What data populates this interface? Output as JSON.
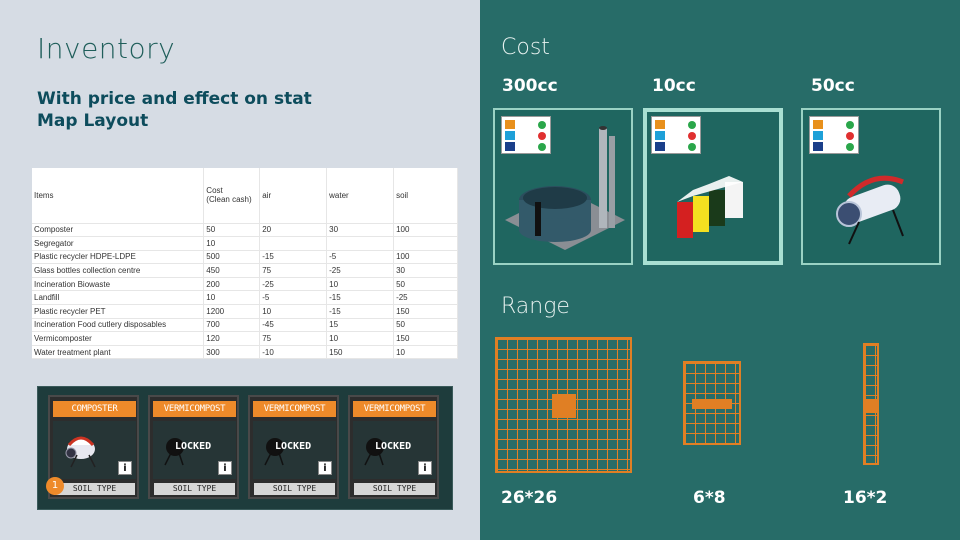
{
  "inventory": {
    "title": "Inventory",
    "subtitle_line1": "With price and effect on stat",
    "subtitle_line2": "Map Layout"
  },
  "table": {
    "headers": [
      "Items",
      "Cost\n(Clean cash)",
      "air",
      "water",
      "soil"
    ],
    "rows": [
      [
        "Composter",
        "50",
        "20",
        "30",
        "100"
      ],
      [
        "Segregator",
        "10",
        "",
        "",
        ""
      ],
      [
        "Plastic recycler HDPE-LDPE",
        "500",
        "-15",
        "-5",
        "100"
      ],
      [
        "Glass bottles collection centre",
        "450",
        "75",
        "-25",
        "30"
      ],
      [
        "Incineration Biowaste",
        "200",
        "-25",
        "10",
        "50"
      ],
      [
        "Landfill",
        "10",
        "-5",
        "-15",
        "-25"
      ],
      [
        "Plastic recycler PET",
        "1200",
        "10",
        "-15",
        "150"
      ],
      [
        "Incineration Food cutlery disposables",
        "700",
        "-45",
        "15",
        "50"
      ],
      [
        "Vermicomposter",
        "120",
        "75",
        "10",
        "150"
      ],
      [
        "Water treatment plant",
        "300",
        "-10",
        "150",
        "10"
      ]
    ]
  },
  "cards": [
    {
      "title": "COMPOSTER",
      "locked": "",
      "footer": "SOIL TYPE",
      "badge": "1",
      "info": "i"
    },
    {
      "title": "VERMICOMPOST",
      "locked": "LOCKED",
      "footer": "SOIL TYPE",
      "badge": "",
      "info": "i"
    },
    {
      "title": "VERMICOMPOST",
      "locked": "LOCKED",
      "footer": "SOIL TYPE",
      "badge": "",
      "info": "i"
    },
    {
      "title": "VERMICOMPOST",
      "locked": "LOCKED",
      "footer": "SOIL TYPE",
      "badge": "",
      "info": "i"
    }
  ],
  "cost": {
    "title": "Cost",
    "items": [
      {
        "price": "300cc",
        "icon": "water-treatment-plant-icon"
      },
      {
        "price": "10cc",
        "icon": "segregator-icon"
      },
      {
        "price": "50cc",
        "icon": "composter-icon"
      }
    ]
  },
  "range": {
    "title": "Range",
    "items": [
      {
        "label": "26*26"
      },
      {
        "label": "6*8"
      },
      {
        "label": "16*2"
      }
    ]
  },
  "colors": {
    "left_bg": "#d6dce4",
    "right_bg": "#276c68",
    "accent_orange": "#e07f24",
    "card_head": "#ee8a2a"
  }
}
